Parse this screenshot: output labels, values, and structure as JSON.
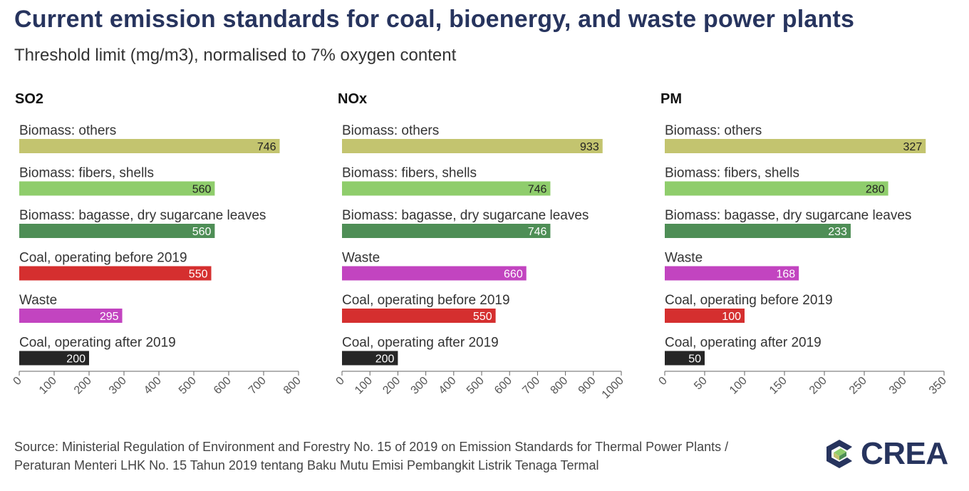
{
  "title": "Current emission standards for coal, bioenergy, and waste power plants",
  "subtitle": "Threshold limit (mg/m3), normalised to 7% oxygen content",
  "source": "Source: Ministerial Regulation of Environment and Forestry No. 15 of 2019 on Emission Standards for Thermal Power Plants / Peraturan Menteri LHK No. 15 Tahun 2019 tentang Baku Mutu Emisi Pembangkit Listrik Tenaga Termal",
  "logo": {
    "text": "CREA",
    "icon": "crea-logo-icon"
  },
  "colors": {
    "Biomass: others": "#c3c46f",
    "Biomass: fibers, shells": "#8fcd6c",
    "Biomass: bagasse, dry sugarcane leaves": "#4e8e56",
    "Coal, operating before 2019": "#d52f2f",
    "Waste": "#c244c0",
    "Coal, operating after 2019": "#262626"
  },
  "chart_data": [
    {
      "type": "bar",
      "orientation": "horizontal",
      "title": "SO2",
      "categories": [
        "Biomass: others",
        "Biomass: fibers, shells",
        "Biomass: bagasse, dry sugarcane leaves",
        "Coal, operating before 2019",
        "Waste",
        "Coal, operating after 2019"
      ],
      "values": [
        746,
        560,
        560,
        550,
        295,
        200
      ],
      "xlim": [
        0,
        800
      ],
      "ticks": [
        0,
        100,
        200,
        300,
        400,
        500,
        600,
        700,
        800
      ],
      "xlabel": "",
      "ylabel": "",
      "grid": false
    },
    {
      "type": "bar",
      "orientation": "horizontal",
      "title": "NOx",
      "categories": [
        "Biomass: others",
        "Biomass: fibers, shells",
        "Biomass: bagasse, dry sugarcane leaves",
        "Waste",
        "Coal, operating before 2019",
        "Coal, operating after 2019"
      ],
      "values": [
        933,
        746,
        746,
        660,
        550,
        200
      ],
      "xlim": [
        0,
        1000
      ],
      "ticks": [
        0,
        100,
        200,
        300,
        400,
        500,
        600,
        700,
        800,
        900,
        1000
      ],
      "xlabel": "",
      "ylabel": "",
      "grid": false
    },
    {
      "type": "bar",
      "orientation": "horizontal",
      "title": "PM",
      "categories": [
        "Biomass: others",
        "Biomass: fibers, shells",
        "Biomass: bagasse, dry sugarcane leaves",
        "Waste",
        "Coal, operating before 2019",
        "Coal, operating after 2019"
      ],
      "values": [
        327,
        280,
        233,
        168,
        100,
        50
      ],
      "xlim": [
        0,
        350
      ],
      "ticks": [
        0,
        50,
        100,
        150,
        200,
        250,
        300,
        350
      ],
      "xlabel": "",
      "ylabel": "",
      "grid": false
    }
  ]
}
